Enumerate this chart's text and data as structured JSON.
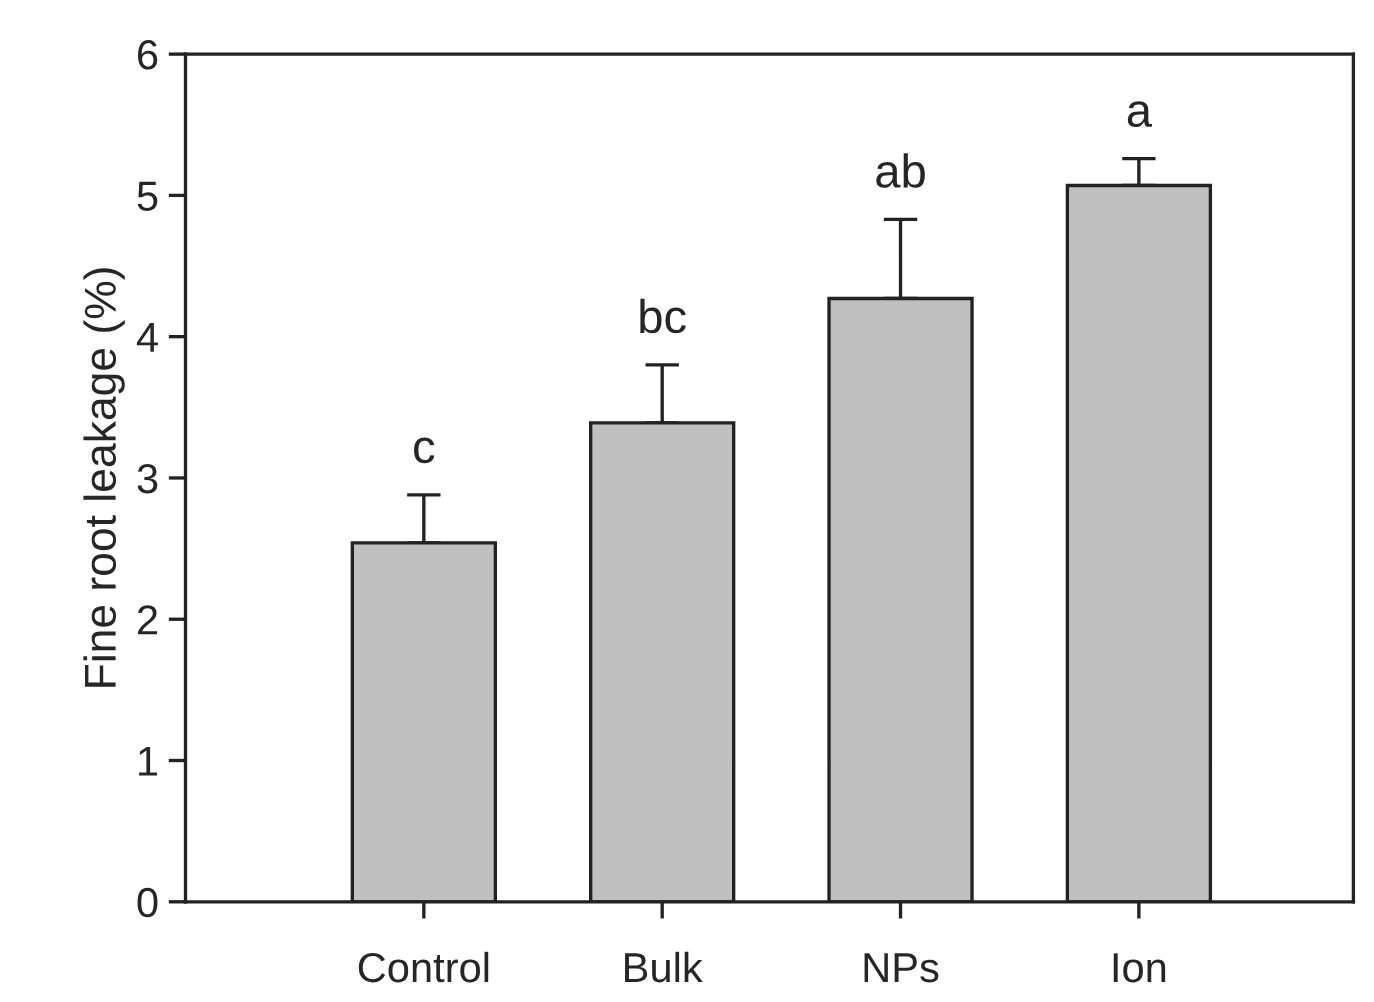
{
  "chart_data": {
    "type": "bar",
    "ylabel": "Fine root leakage (%)",
    "categories": [
      "Control",
      "Bulk",
      "NPs",
      "Ion"
    ],
    "values": [
      2.54,
      3.39,
      4.27,
      5.07
    ],
    "errors": [
      [
        2.54,
        2.88
      ],
      [
        3.39,
        3.8
      ],
      [
        4.27,
        4.83
      ],
      [
        5.07,
        5.26
      ]
    ],
    "color": "#c0c0c0",
    "ylim": [
      0,
      6
    ],
    "yticks": [
      0,
      1,
      2,
      3,
      4,
      5,
      6
    ],
    "grid": false,
    "annotations": [
      "c",
      "bc",
      "ab",
      "a"
    ]
  }
}
